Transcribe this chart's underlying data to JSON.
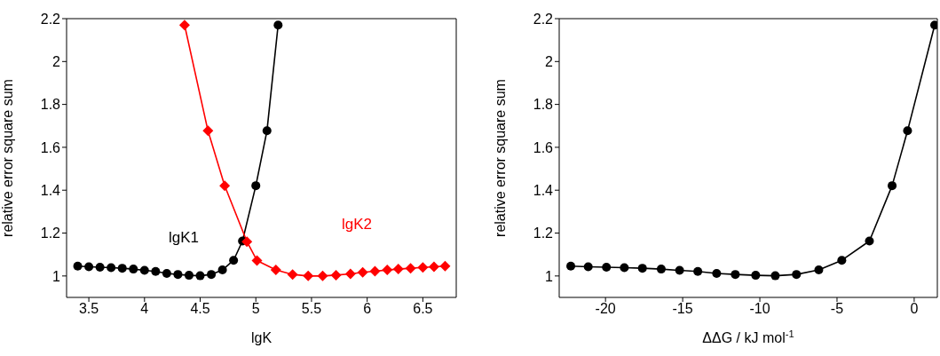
{
  "chart_data": [
    {
      "type": "line",
      "xlabel": "lgK",
      "ylabel": "relative error square sum",
      "xlim": [
        3.3,
        6.8
      ],
      "xticks": [
        3.5,
        4,
        4.5,
        5,
        5.5,
        6,
        6.5
      ],
      "ylim": [
        0.9,
        2.2
      ],
      "yticks": [
        1,
        1.2,
        1.4,
        1.6,
        1.8,
        2,
        2.2
      ],
      "line_style": "solid",
      "series": [
        {
          "name": "lgK1",
          "color": "#000000",
          "marker": "circle",
          "x": [
            3.4,
            3.5,
            3.6,
            3.7,
            3.8,
            3.9,
            4.0,
            4.1,
            4.2,
            4.3,
            4.4,
            4.5,
            4.6,
            4.7,
            4.8,
            4.88,
            5.0,
            5.1,
            5.2
          ],
          "values": [
            1.046,
            1.043,
            1.041,
            1.039,
            1.036,
            1.032,
            1.026,
            1.021,
            1.012,
            1.007,
            1.003,
            1.001,
            1.007,
            1.028,
            1.073,
            1.163,
            1.421,
            1.677,
            2.17
          ]
        },
        {
          "name": "lgK2",
          "color": "#ff0000",
          "marker": "diamond",
          "x": [
            4.36,
            4.57,
            4.72,
            4.92,
            5.01,
            5.18,
            5.33,
            5.47,
            5.6,
            5.72,
            5.85,
            5.96,
            6.07,
            6.18,
            6.28,
            6.39,
            6.5,
            6.6,
            6.7
          ],
          "values": [
            2.17,
            1.677,
            1.421,
            1.16,
            1.072,
            1.028,
            1.007,
            1.0,
            1.0,
            1.004,
            1.01,
            1.017,
            1.022,
            1.028,
            1.032,
            1.036,
            1.04,
            1.043,
            1.046
          ]
        }
      ]
    },
    {
      "type": "line",
      "xlabel": "ΔΔG / kJ mol$^{-1}$",
      "ylabel": "relative error square sum",
      "xlim": [
        -23,
        1.5
      ],
      "xticks": [
        -20,
        -15,
        -10,
        -5,
        0
      ],
      "ylim": [
        0.9,
        2.2
      ],
      "yticks": [
        1,
        1.2,
        1.4,
        1.6,
        1.8,
        2,
        2.2
      ],
      "line_style": "solid",
      "marker": "circle",
      "series": [
        {
          "color": "#000000",
          "x": [
            -22.25,
            -21.12,
            -19.94,
            -18.78,
            -17.61,
            -16.39,
            -15.2,
            -14.02,
            -12.8,
            -11.59,
            -10.27,
            -9.0,
            -7.63,
            -6.18,
            -4.69,
            -2.9,
            -1.43,
            -0.43,
            1.33
          ],
          "values": [
            1.046,
            1.043,
            1.041,
            1.039,
            1.036,
            1.032,
            1.026,
            1.021,
            1.012,
            1.007,
            1.003,
            1.001,
            1.007,
            1.028,
            1.073,
            1.163,
            1.421,
            1.677,
            2.17
          ]
        }
      ]
    }
  ]
}
